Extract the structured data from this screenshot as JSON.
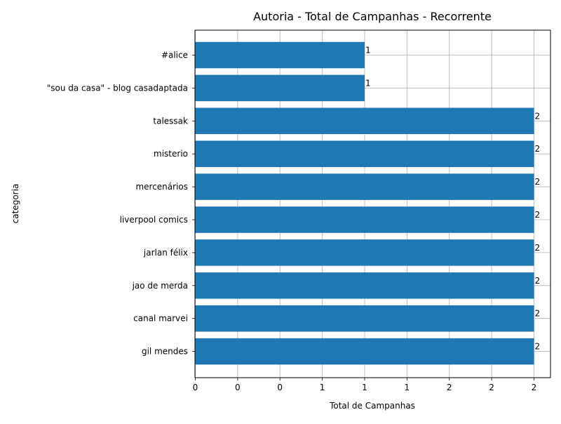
{
  "chart_data": {
    "type": "bar",
    "orientation": "horizontal",
    "title": "Autoria - Total de Campanhas - Recorrente",
    "xlabel": "Total de Campanhas",
    "ylabel": "categoria",
    "categories": [
      "#alice",
      "\"sou da casa\" - blog casadaptada",
      "talessak",
      "misterio",
      "mercenários",
      "liverpool comics",
      "jarlan félix",
      "jao de merda",
      "canal marvei",
      "gil mendes"
    ],
    "values": [
      1,
      1,
      2,
      2,
      2,
      2,
      2,
      2,
      2,
      2
    ],
    "data_labels": [
      "1",
      "1",
      "2",
      "2",
      "2",
      "2",
      "2",
      "2",
      "2",
      "2"
    ],
    "xticks": [
      0,
      0.25,
      0.5,
      0.75,
      1,
      1.25,
      1.5,
      1.75,
      2
    ],
    "xtick_labels": [
      "0",
      "0",
      "0",
      "1",
      "1",
      "1",
      "2",
      "2",
      "2"
    ],
    "xlim": [
      0,
      2.05
    ],
    "grid": true,
    "bar_color": "#1f77b4"
  }
}
